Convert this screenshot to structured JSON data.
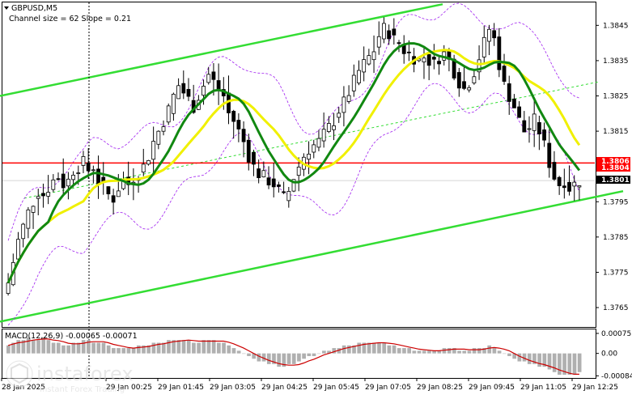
{
  "chart_data": {
    "type": "candlestick",
    "symbol_label": "GBPUSD,M5",
    "indicator_label": "Channel size = 62 Slope = 0.21",
    "price_axis": {
      "ticks": [
        "1.3845",
        "1.3835",
        "1.3825",
        "1.3815",
        "1.3795",
        "1.3785",
        "1.3775",
        "1.3765"
      ],
      "ylim": [
        1.37595,
        1.38515
      ]
    },
    "time_axis": {
      "ticks": [
        "28 Jan 2025",
        "29 Jan 00:25",
        "29 Jan 01:45",
        "29 Jan 03:05",
        "29 Jan 04:25",
        "29 Jan 05:45",
        "29 Jan 07:05",
        "29 Jan 08:25",
        "29 Jan 09:45",
        "29 Jan 11:05",
        "29 Jan 12:25"
      ]
    },
    "price_tags": [
      {
        "label": "1.3806",
        "value": 1.3806,
        "color": "#ff0000"
      },
      {
        "label": "1.3804",
        "value": 1.3804,
        "color": "#ff0000"
      },
      {
        "label": "1.3801",
        "value": 1.3801,
        "color": "#000000"
      }
    ],
    "close_series": [
      1.3772,
      1.3778,
      1.3784,
      1.3788,
      1.3792,
      1.3795,
      1.3798,
      1.3797,
      1.3799,
      1.3801,
      1.3802,
      1.38,
      1.3801,
      1.3804,
      1.3805,
      1.3806,
      1.3804,
      1.3805,
      1.3801,
      1.3799,
      1.3797,
      1.3796,
      1.3799,
      1.3801,
      1.38,
      1.3802,
      1.3803,
      1.3805,
      1.3808,
      1.3812,
      1.3815,
      1.3818,
      1.3821,
      1.3825,
      1.3828,
      1.3826,
      1.3824,
      1.3822,
      1.3825,
      1.3828,
      1.3831,
      1.3829,
      1.3827,
      1.3825,
      1.382,
      1.3818,
      1.3815,
      1.3812,
      1.3808,
      1.3805,
      1.3803,
      1.3802,
      1.3801,
      1.38,
      1.3798,
      1.3796,
      1.3798,
      1.3802,
      1.3805,
      1.3808,
      1.381,
      1.3811,
      1.3812,
      1.3814,
      1.3816,
      1.3818,
      1.3821,
      1.3823,
      1.3826,
      1.3829,
      1.3832,
      1.3834,
      1.3836,
      1.3838,
      1.3842,
      1.3844,
      1.3843,
      1.3841,
      1.384,
      1.3838,
      1.3837,
      1.3836,
      1.3835,
      1.3836,
      1.3835,
      1.3834,
      1.3836,
      1.3837,
      1.3835,
      1.3832,
      1.3829,
      1.3827,
      1.3829,
      1.3832,
      1.3836,
      1.384,
      1.3844,
      1.3841,
      1.3834,
      1.3828,
      1.3825,
      1.3822,
      1.3818,
      1.3815,
      1.3816,
      1.3818,
      1.3815,
      1.3811,
      1.3806,
      1.3802,
      1.38,
      1.3801,
      1.3799,
      1.38,
      1.3801
    ],
    "bollinger": {
      "half_width": 0.0012,
      "color": "#a020f0"
    },
    "channel": {
      "upper": [
        [
          0,
          1.3825
        ],
        [
          547,
          1.3851
        ]
      ],
      "lower": [
        [
          0,
          1.3761
        ],
        [
          770,
          1.3798
        ]
      ],
      "middle": [
        [
          30,
          1.3796
        ],
        [
          740,
          1.3829
        ]
      ],
      "color": "#33dd33"
    },
    "ma_fast": {
      "color": "#118811"
    },
    "ma_slow": {
      "color": "#f0f000"
    },
    "horizontal_line": {
      "value": 1.3806,
      "color": "#ff0000"
    },
    "macd": {
      "label": "MACD(12,26,9) -0.00065 -0.00071",
      "ticks": [
        "0.00075",
        "0.00",
        "-0.00084"
      ],
      "ylim": [
        -0.00092,
        0.0009
      ],
      "histogram": [
        0.0003,
        0.0004,
        0.0005,
        0.0005,
        0.0006,
        0.0005,
        0.0005,
        0.0006,
        0.0005,
        0.0004,
        0.0004,
        0.0003,
        0.0003,
        0.0004,
        0.0004,
        0.0005,
        0.0005,
        0.0004,
        0.0004,
        0.0004,
        0.0003,
        0.0002,
        0.0002,
        0.0002,
        0.0002,
        0.0002,
        0.0003,
        0.0003,
        0.0003,
        0.0004,
        0.0004,
        0.0004,
        0.0005,
        0.0005,
        0.0005,
        0.0005,
        0.0005,
        0.0004,
        0.0004,
        0.0005,
        0.0005,
        0.0005,
        0.0004,
        0.0004,
        0.0003,
        0.0002,
        0.0001,
        0.0,
        -0.0001,
        -0.0002,
        -0.0003,
        -0.0003,
        -0.0004,
        -0.0004,
        -0.0005,
        -0.0005,
        -0.0004,
        -0.0004,
        -0.0003,
        -0.0002,
        -0.0001,
        -0.0001,
        0.0,
        0.0001,
        0.0001,
        0.0002,
        0.0002,
        0.0003,
        0.0003,
        0.0003,
        0.0004,
        0.0004,
        0.0004,
        0.0004,
        0.0004,
        0.0004,
        0.0003,
        0.0003,
        0.0002,
        0.0002,
        0.0002,
        0.0001,
        0.0001,
        0.0001,
        0.0001,
        0.0001,
        0.0001,
        0.0002,
        0.0002,
        0.0002,
        0.0001,
        0.0001,
        0.0001,
        0.0002,
        0.0002,
        0.0002,
        0.0003,
        0.0002,
        0.0001,
        0.0,
        -0.0001,
        -0.0002,
        -0.0003,
        -0.0003,
        -0.0004,
        -0.0004,
        -0.0005,
        -0.0005,
        -0.0006,
        -0.0007,
        -0.0008,
        -0.0008,
        -0.0008,
        -0.0008,
        -0.0007
      ],
      "signal_color": "#cc0000",
      "hist_color": "#b0b0b0"
    },
    "grid": false
  },
  "watermark": {
    "brand": "instaforex",
    "tagline": "Instant Forex Trading"
  }
}
